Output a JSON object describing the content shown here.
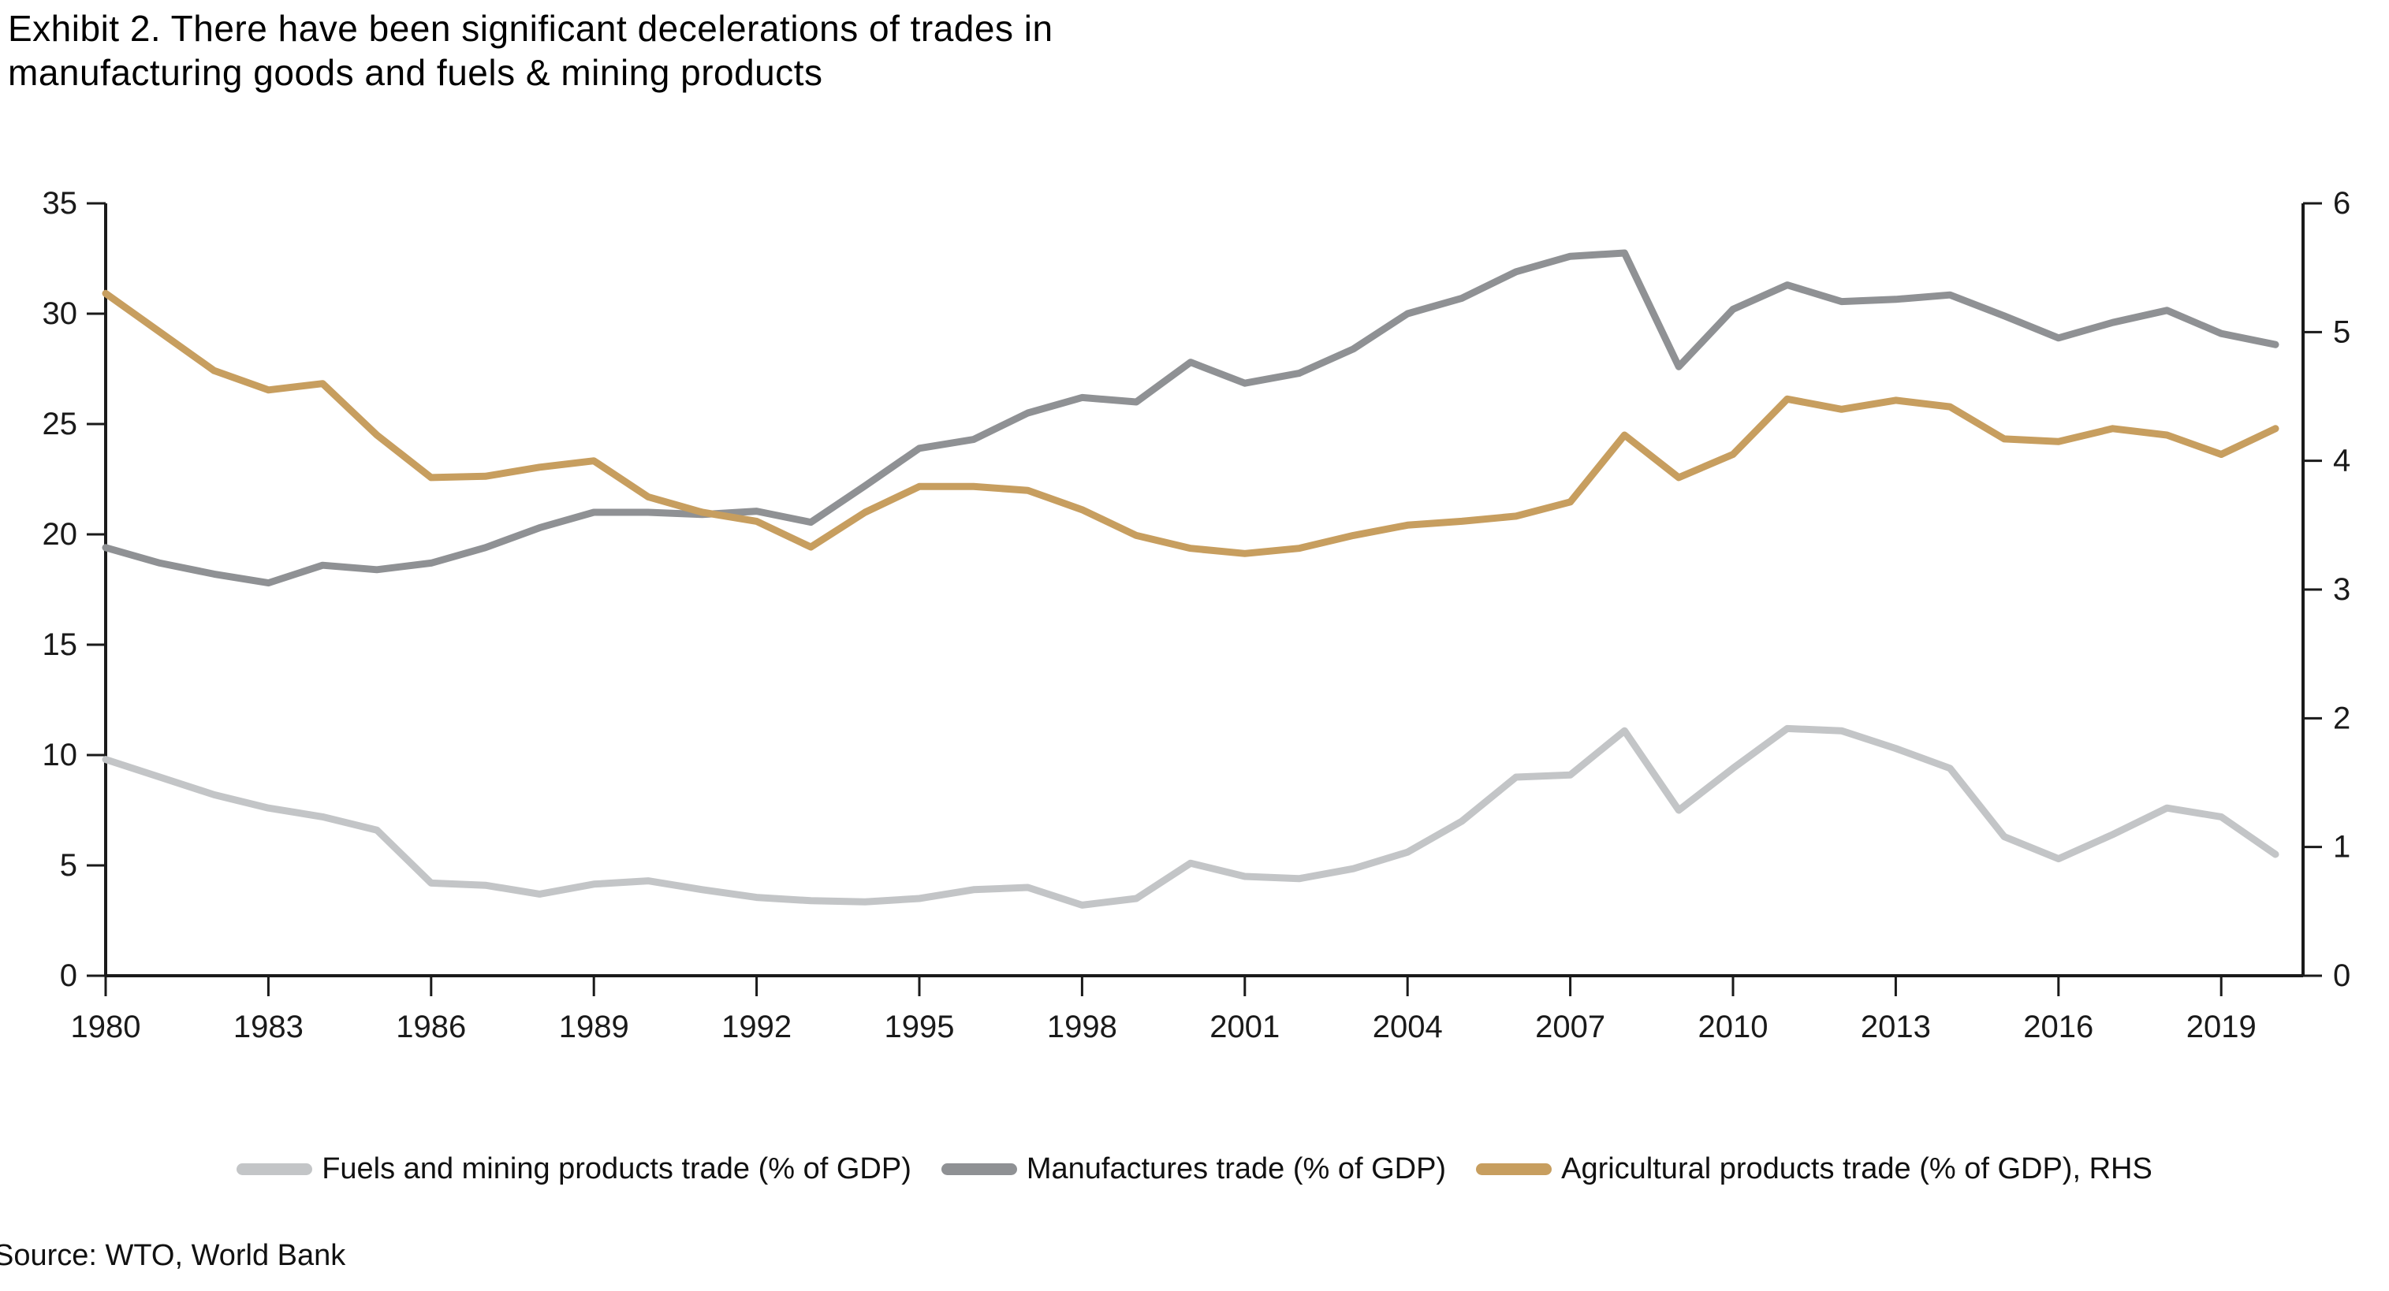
{
  "title": {
    "line1": "Exhibit 2. There have been significant decelerations of trades in",
    "line2": "manufacturing goods and fuels & mining products"
  },
  "source": "Source: WTO, World Bank",
  "colors": {
    "fuels": "#c3c5c7",
    "manufactures": "#8f9194",
    "agriculture": "#c79e5f",
    "axis": "#1a1a1a"
  },
  "legend": [
    {
      "label": "Fuels and mining products trade (% of GDP)",
      "color": "#c3c5c7"
    },
    {
      "label": "Manufactures trade (% of GDP)",
      "color": "#8f9194"
    },
    {
      "label": "Agricultural products trade (% of GDP), RHS",
      "color": "#c79e5f"
    }
  ],
  "chart_data": {
    "type": "line",
    "x": [
      1980,
      1981,
      1982,
      1983,
      1984,
      1985,
      1986,
      1987,
      1988,
      1989,
      1990,
      1991,
      1992,
      1993,
      1994,
      1995,
      1996,
      1997,
      1998,
      1999,
      2000,
      2001,
      2002,
      2003,
      2004,
      2005,
      2006,
      2007,
      2008,
      2009,
      2010,
      2011,
      2012,
      2013,
      2014,
      2015,
      2016,
      2017,
      2018,
      2019,
      2020
    ],
    "x_tick_labels": [
      1980,
      1983,
      1986,
      1989,
      1992,
      1995,
      1998,
      2001,
      2004,
      2007,
      2010,
      2013,
      2016,
      2019
    ],
    "left_axis": {
      "range": [
        0,
        35
      ],
      "ticks": [
        0,
        5,
        10,
        15,
        20,
        25,
        30,
        35
      ]
    },
    "right_axis": {
      "range": [
        0,
        6
      ],
      "ticks": [
        0,
        1,
        2,
        3,
        4,
        5,
        6
      ]
    },
    "grid": false,
    "legend_position": "bottom",
    "series": [
      {
        "name": "Fuels and mining products trade (% of GDP)",
        "axis": "left",
        "color": "#c3c5c7",
        "values": [
          9.8,
          9.0,
          8.2,
          7.6,
          7.2,
          6.6,
          4.2,
          4.1,
          3.7,
          4.15,
          4.3,
          3.9,
          3.55,
          3.4,
          3.35,
          3.5,
          3.9,
          4.0,
          3.2,
          3.5,
          5.1,
          4.5,
          4.4,
          4.85,
          5.6,
          7.0,
          9.0,
          9.1,
          11.1,
          7.5,
          9.4,
          11.2,
          11.1,
          10.3,
          9.4,
          6.3,
          5.3,
          6.4,
          7.6,
          7.2,
          5.5
        ]
      },
      {
        "name": "Manufactures trade (% of GDP)",
        "axis": "left",
        "color": "#8f9194",
        "values": [
          19.4,
          18.7,
          18.2,
          17.8,
          18.6,
          18.4,
          18.7,
          19.4,
          20.3,
          21.0,
          21.0,
          20.9,
          21.05,
          20.55,
          22.2,
          23.9,
          24.3,
          25.5,
          26.2,
          26.0,
          27.8,
          26.85,
          27.3,
          28.4,
          30.0,
          30.7,
          31.9,
          32.6,
          32.75,
          27.6,
          30.2,
          31.3,
          30.55,
          30.65,
          30.85,
          29.9,
          28.9,
          29.6,
          30.15,
          29.1,
          28.6
        ]
      },
      {
        "name": "Agricultural products trade (% of GDP), RHS",
        "axis": "right",
        "color": "#c79e5f",
        "values": [
          5.3,
          5.0,
          4.7,
          4.55,
          4.6,
          4.2,
          3.87,
          3.88,
          3.95,
          4.0,
          3.72,
          3.6,
          3.53,
          3.33,
          3.6,
          3.8,
          3.8,
          3.77,
          3.62,
          3.42,
          3.32,
          3.28,
          3.32,
          3.42,
          3.5,
          3.53,
          3.57,
          3.68,
          4.2,
          3.87,
          4.05,
          4.48,
          4.4,
          4.47,
          4.42,
          4.17,
          4.15,
          4.25,
          4.2,
          4.05,
          4.25
        ]
      }
    ]
  }
}
